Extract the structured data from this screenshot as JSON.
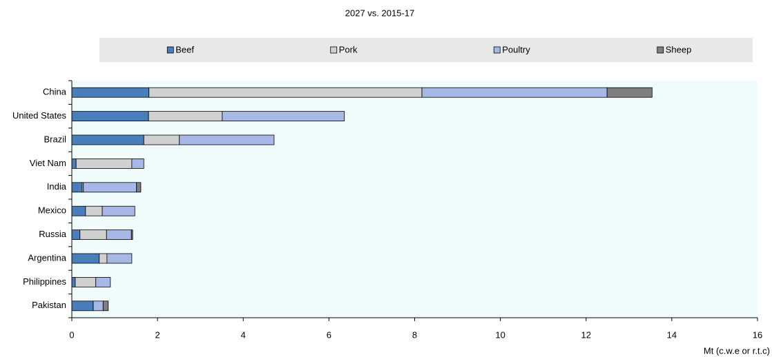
{
  "chart_data": {
    "type": "stacked-barh",
    "title": "2027 vs. 2015-17",
    "x_label": "Mt (c.w.e or r.t.c)",
    "categories": [
      "China",
      "United States",
      "Brazil",
      "Viet Nam",
      "India",
      "Mexico",
      "Russia",
      "Argentina",
      "Philippines",
      "Pakistan"
    ],
    "series": [
      {
        "name": "Beef",
        "color": "#4a7ebb",
        "values": [
          1.8,
          1.79,
          1.68,
          0.1,
          0.24,
          0.32,
          0.19,
          0.64,
          0.08,
          0.5
        ]
      },
      {
        "name": "Pork",
        "color": "#d0d0d0",
        "values": [
          6.37,
          1.72,
          0.83,
          1.3,
          0.03,
          0.39,
          0.62,
          0.18,
          0.48,
          0
        ]
      },
      {
        "name": "Poultry",
        "color": "#a8b8e6",
        "values": [
          4.32,
          2.85,
          2.21,
          0.28,
          1.24,
          0.76,
          0.58,
          0.58,
          0.34,
          0.23
        ]
      },
      {
        "name": "Sheep",
        "color": "#7f7f7f",
        "values": [
          1.05,
          0,
          0,
          0,
          0.1,
          0,
          0.03,
          0,
          0,
          0.12
        ]
      }
    ],
    "xlim": [
      0,
      16
    ],
    "xticks": [
      0,
      2,
      4,
      6,
      8,
      10,
      12,
      14,
      16
    ],
    "grid": false,
    "legend": "top"
  }
}
